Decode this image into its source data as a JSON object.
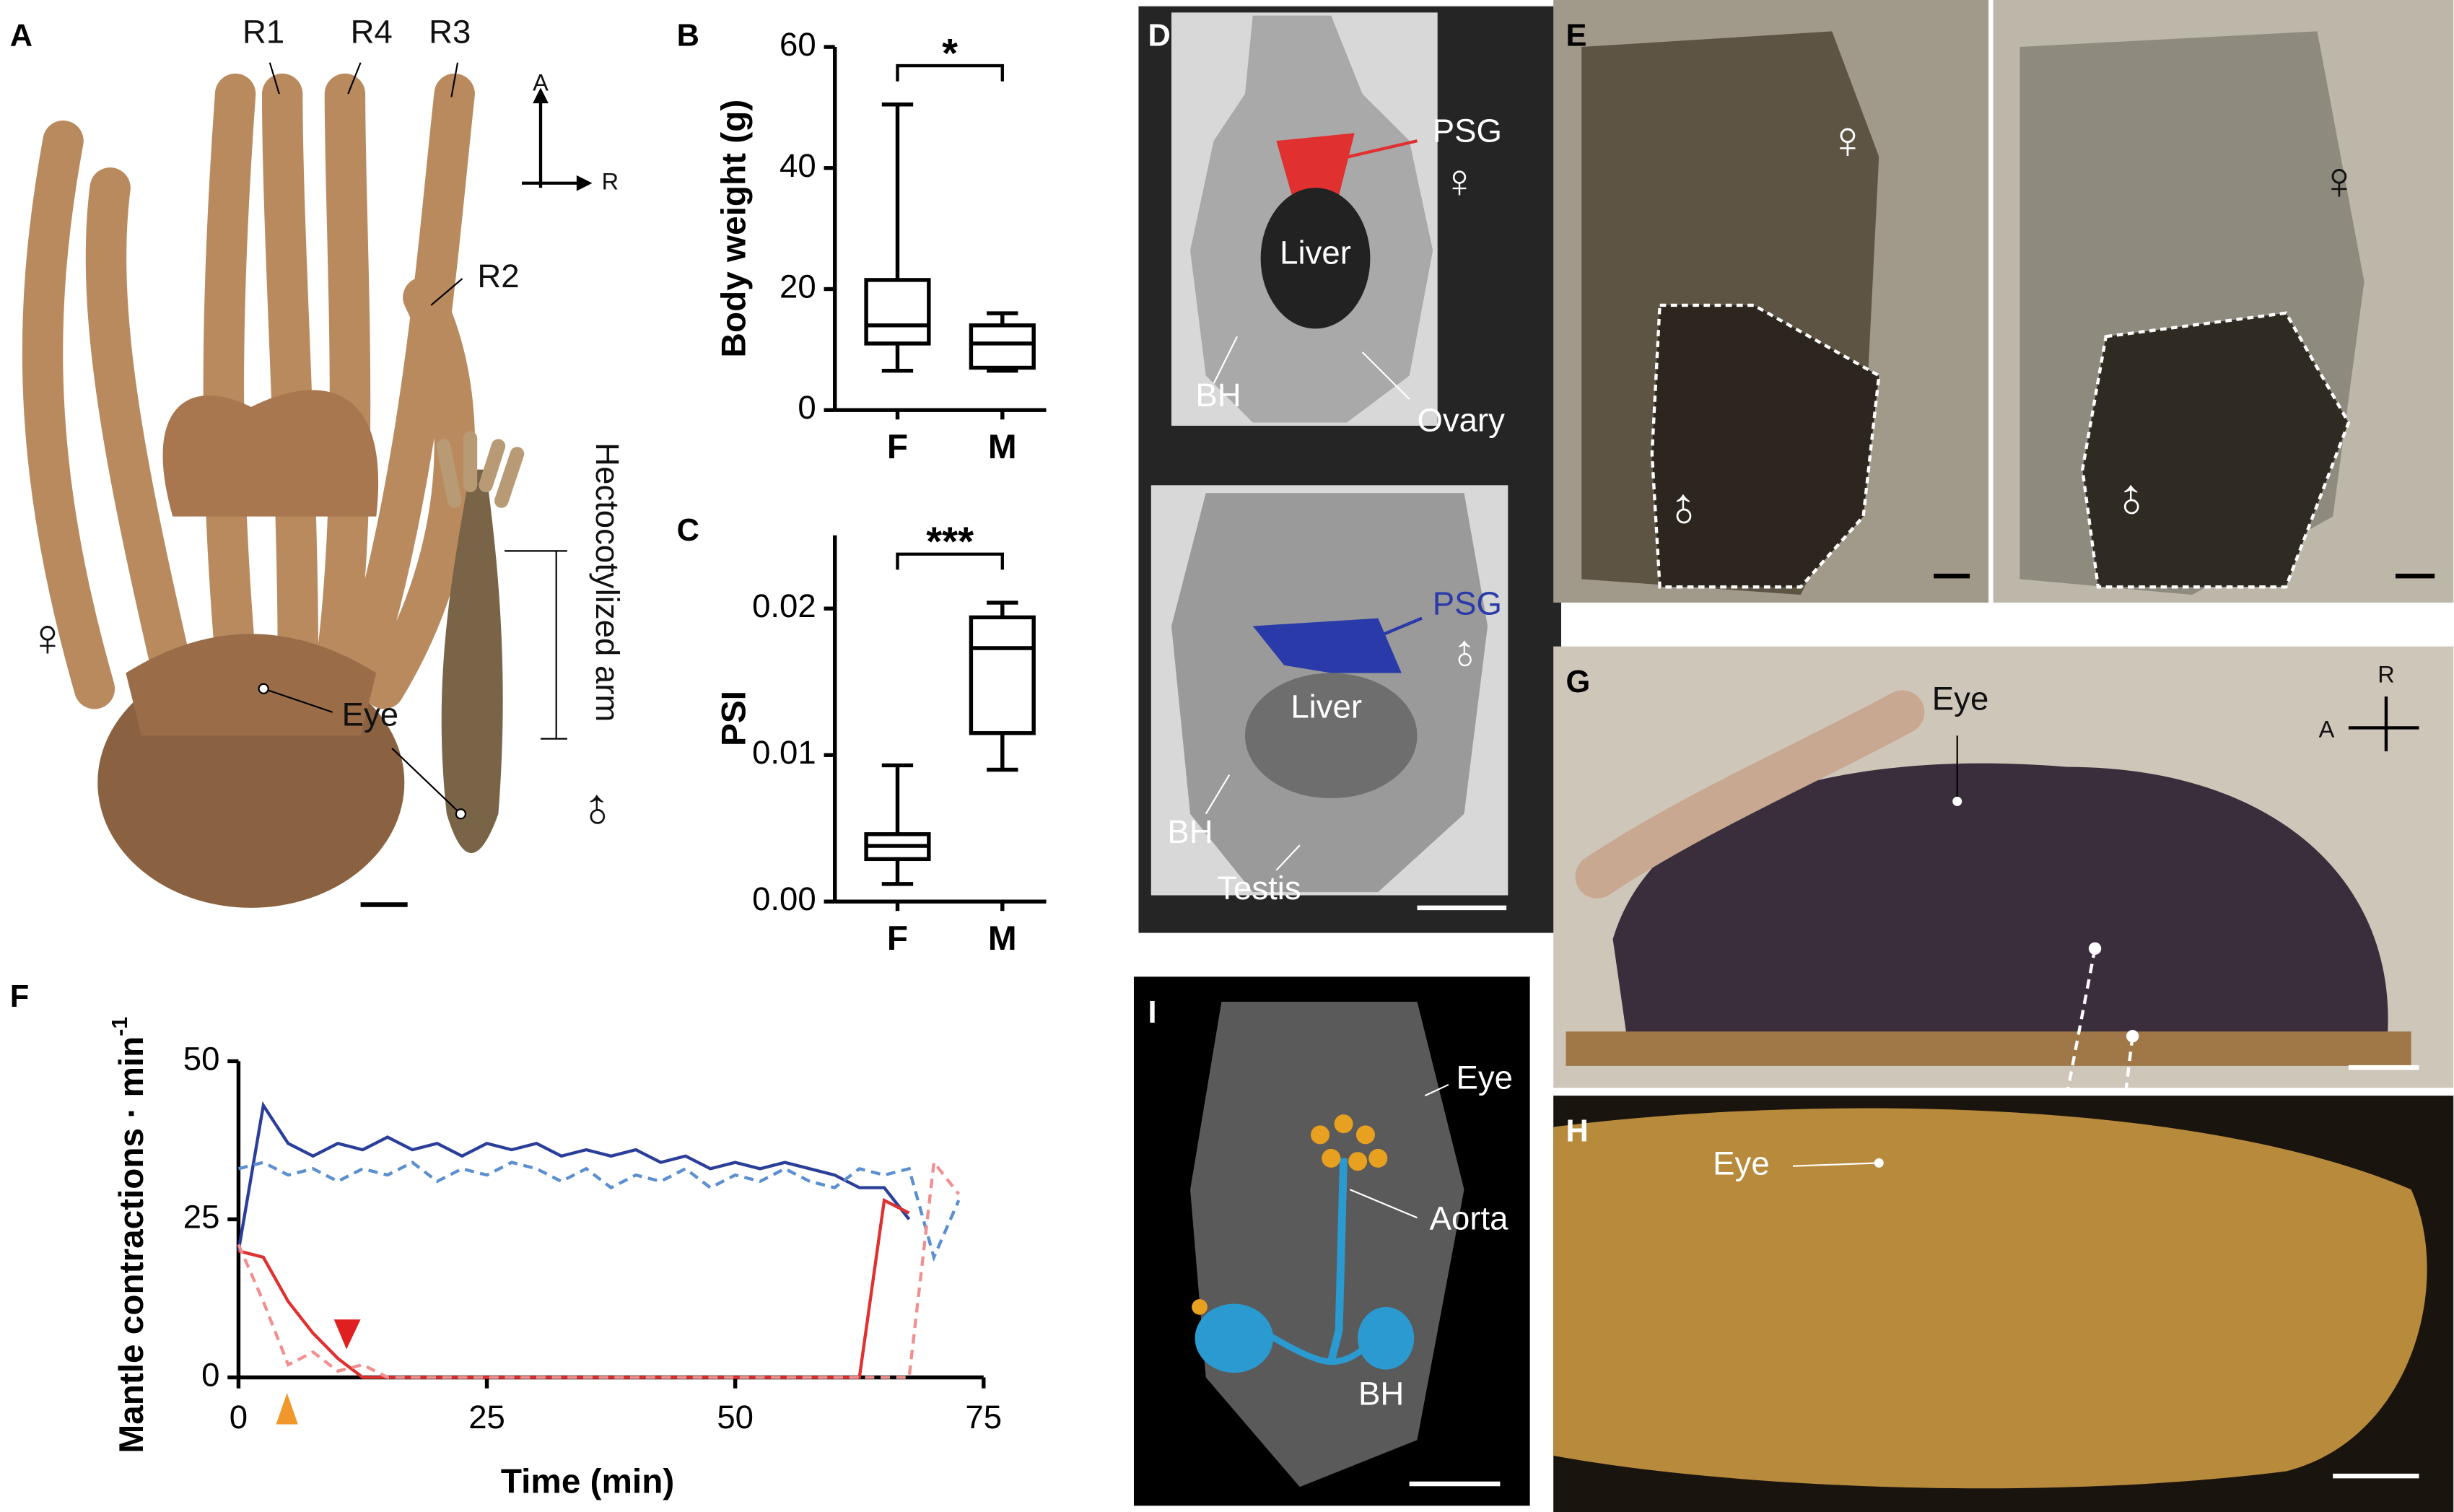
{
  "panel_labels": [
    "A",
    "B",
    "C",
    "D",
    "E",
    "F",
    "G",
    "H",
    "I"
  ],
  "panel_a": {
    "arms": [
      "R1",
      "R4",
      "R3",
      "R2"
    ],
    "axis_a": "A",
    "axis_r": "R",
    "female": "♀",
    "male": "♂",
    "eye": "Eye",
    "hectocotylized": "Hectocotylized arm"
  },
  "panel_d": {
    "top": {
      "psg": "PSG",
      "sex": "♀",
      "liver": "Liver",
      "bh": "BH",
      "gonad": "Ovary"
    },
    "bottom": {
      "psg": "PSG",
      "sex": "♂",
      "liver": "Liver",
      "bh": "BH",
      "gonad": "Testis"
    }
  },
  "panel_e": {
    "left": {
      "female": "♀",
      "male": "♂"
    },
    "right": {
      "female": "♀",
      "male": "♂"
    }
  },
  "panel_g": {
    "eye": "Eye",
    "axis_r": "R",
    "axis_a": "A"
  },
  "panel_h": {
    "eye": "Eye"
  },
  "panel_i": {
    "eye": "Eye",
    "aorta": "Aorta",
    "bh": "BH"
  },
  "chart_data": [
    {
      "type": "box",
      "ylabel": "Body weight (g)",
      "categories": [
        "F",
        "M"
      ],
      "whisker_low": [
        6.5,
        6.5
      ],
      "q1": [
        11,
        7
      ],
      "median": [
        14,
        11
      ],
      "q3": [
        21.5,
        14
      ],
      "whisker_high": [
        50.5,
        16
      ],
      "significance": "*",
      "color": "#000000",
      "ylim": [
        0,
        60
      ],
      "yticks": [
        0,
        20,
        40,
        60
      ]
    },
    {
      "type": "box",
      "ylabel": "PSI",
      "categories": [
        "F",
        "M"
      ],
      "whisker_low": [
        0.0012,
        0.009
      ],
      "q1": [
        0.0029,
        0.0115
      ],
      "median": [
        0.0038,
        0.0173
      ],
      "q3": [
        0.0046,
        0.0194
      ],
      "whisker_high": [
        0.0093,
        0.0204
      ],
      "significance": "***",
      "color": "#000000",
      "ylim": [
        0,
        0.025
      ],
      "yticks": [
        {
          "value": 0,
          "label": "0.00"
        },
        0.01,
        0.02
      ]
    },
    {
      "type": "line",
      "xlabel": "Time (min)",
      "ylabel": "Mantle contractions · min",
      "ylabel_sup": "-1",
      "x": [
        0,
        2.5,
        5,
        7.5,
        10,
        12.5,
        15,
        17.5,
        20,
        22.5,
        25,
        27.5,
        30,
        32.5,
        35,
        37.5,
        40,
        42.5,
        45,
        47.5,
        50,
        52.5,
        55,
        57.5,
        60,
        62.5,
        65,
        67.5,
        70,
        72.5
      ],
      "series": [
        {
          "color": "#2b3f9a",
          "dashed": false,
          "values": [
            20,
            43,
            37,
            35,
            37,
            36,
            38,
            36,
            37,
            35,
            37,
            36,
            37,
            35,
            36,
            35,
            36,
            34,
            35,
            33,
            34,
            33,
            34,
            33,
            32,
            30,
            30,
            25,
            null,
            null
          ]
        },
        {
          "color": "#5b8fd0",
          "dashed": true,
          "values": [
            33,
            34,
            32,
            33,
            31,
            33,
            32,
            34,
            31,
            33,
            32,
            34,
            33,
            31,
            33,
            30,
            32,
            31,
            33,
            30,
            32,
            31,
            33,
            31,
            30,
            33,
            32,
            33,
            19,
            28
          ]
        },
        {
          "color": "#e03030",
          "dashed": false,
          "values": [
            20,
            19,
            12,
            7,
            3,
            0,
            0,
            0,
            0,
            0,
            0,
            0,
            0,
            0,
            0,
            0,
            0,
            0,
            0,
            0,
            0,
            0,
            0,
            0,
            0,
            0,
            28,
            26,
            null,
            null
          ]
        },
        {
          "color": "#f09090",
          "dashed": true,
          "values": [
            21,
            12,
            2,
            4,
            1,
            2,
            0,
            0,
            0,
            0,
            0,
            0,
            0,
            0,
            0,
            0,
            0,
            0,
            0,
            0,
            0,
            0,
            0,
            0,
            0,
            0,
            0,
            0,
            34,
            29
          ]
        }
      ],
      "xlim": [
        0,
        75
      ],
      "xticks": [
        0,
        25,
        50,
        75
      ],
      "ylim": [
        0,
        50
      ],
      "yticks": [
        0,
        25,
        50
      ]
    }
  ]
}
